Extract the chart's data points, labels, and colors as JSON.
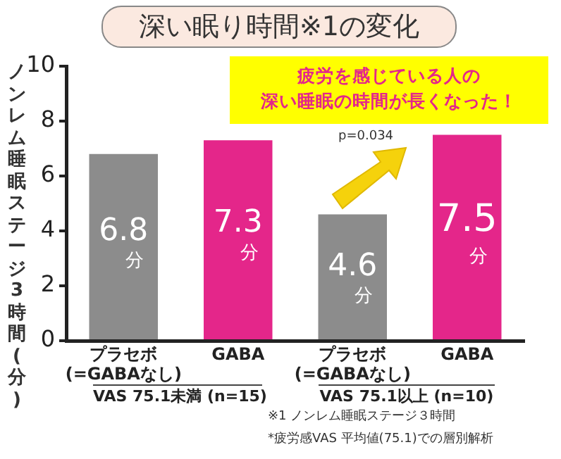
{
  "chart_data": {
    "type": "bar",
    "title": "深い眠り時間※1の変化",
    "ylabel": "ノンレム睡眠ステージ3時間(分)",
    "categories": [
      "プラセボ\n(=GABAなし)",
      "GABA",
      "プラセボ\n(=GABAなし)",
      "GABA"
    ],
    "values": [
      6.8,
      7.3,
      4.6,
      7.5
    ],
    "colors": [
      "#8c8c8c",
      "#e4268a",
      "#8c8c8c",
      "#e4268a"
    ],
    "value_labels": [
      "6.8\n分",
      "7.3\n分",
      "4.6\n分",
      "7.5\n分"
    ],
    "ylim": [
      0,
      10
    ],
    "yticks": [
      0,
      2,
      4,
      6,
      8,
      10
    ],
    "grid": false,
    "legend": false,
    "annotations": [
      "疲労を感じている人の",
      "深い睡眠の時間が長くなった！",
      "p=0.034",
      "VAS 75.1未満 (n=15)",
      "VAS 75.1以上 (n=10)",
      "※1 ノンレム睡眠ステージ３時間",
      "*疲労感VAS 平均値(75.1)での層別解析"
    ]
  }
}
